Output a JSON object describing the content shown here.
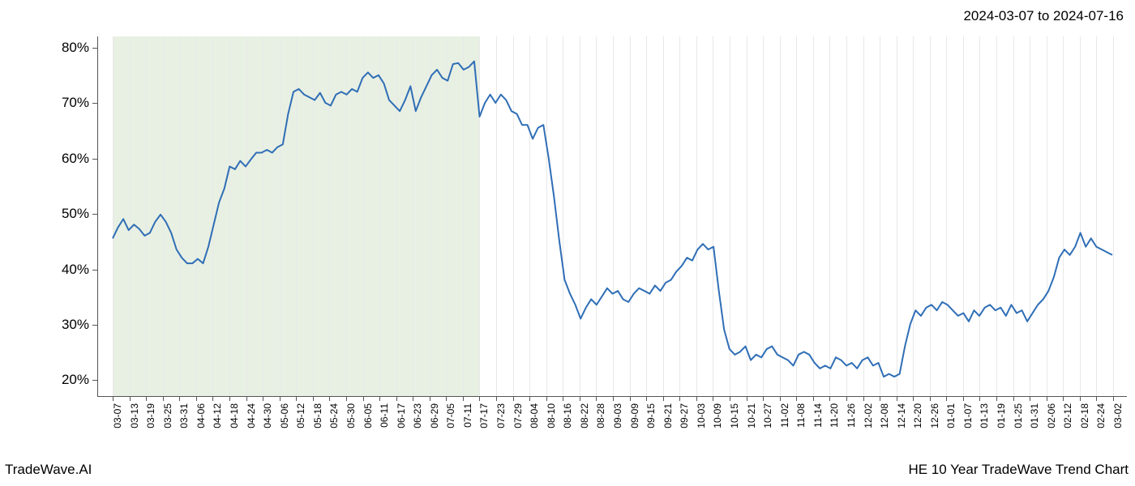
{
  "date_range_label": "2024-03-07 to 2024-07-16",
  "footer_left": "TradeWave.AI",
  "footer_right": "HE 10 Year TradeWave Trend Chart",
  "chart": {
    "type": "line",
    "line_color": "#2f6eb6",
    "line_width": 2,
    "background_color": "#ffffff",
    "grid_color": "#e8e8e8",
    "axis_color": "#555555",
    "highlight_band": {
      "color": "#dce8d4",
      "opacity": 0.65,
      "x_start_index": 0,
      "x_end_index": 22
    },
    "y_axis": {
      "min": 17,
      "max": 82,
      "ticks": [
        20,
        30,
        40,
        50,
        60,
        70,
        80
      ],
      "tick_labels": [
        "20%",
        "30%",
        "40%",
        "50%",
        "60%",
        "70%",
        "80%"
      ],
      "label_fontsize": 17
    },
    "x_axis": {
      "labels": [
        "03-07",
        "03-13",
        "03-19",
        "03-25",
        "03-31",
        "04-06",
        "04-12",
        "04-18",
        "04-24",
        "04-30",
        "05-06",
        "05-12",
        "05-18",
        "05-24",
        "05-30",
        "06-05",
        "06-11",
        "06-17",
        "06-23",
        "06-29",
        "07-05",
        "07-11",
        "07-17",
        "07-23",
        "07-29",
        "08-04",
        "08-10",
        "08-16",
        "08-22",
        "08-28",
        "09-03",
        "09-09",
        "09-15",
        "09-21",
        "09-27",
        "10-03",
        "10-09",
        "10-15",
        "10-21",
        "10-27",
        "11-02",
        "11-08",
        "11-14",
        "11-20",
        "11-26",
        "12-02",
        "12-08",
        "12-14",
        "12-20",
        "12-26",
        "01-01",
        "01-07",
        "01-13",
        "01-19",
        "01-25",
        "01-31",
        "02-06",
        "02-12",
        "02-18",
        "02-24",
        "03-02"
      ],
      "label_fontsize": 12
    },
    "series": {
      "values": [
        45.5,
        47.5,
        49.0,
        47.0,
        48.0,
        47.2,
        46.0,
        46.5,
        48.5,
        49.8,
        48.5,
        46.5,
        43.5,
        42.0,
        41.0,
        41.0,
        41.8,
        41.0,
        44.0,
        48.0,
        52.0,
        54.5,
        58.5,
        58.0,
        59.5,
        58.5,
        59.8,
        61.0,
        61.0,
        61.5,
        61.0,
        62.0,
        62.5,
        68.0,
        72.0,
        72.5,
        71.5,
        71.0,
        70.5,
        71.8,
        70.0,
        69.5,
        71.5,
        72.0,
        71.5,
        72.5,
        72.0,
        74.5,
        75.5,
        74.5,
        75.0,
        73.5,
        70.5,
        69.5,
        68.5,
        70.5,
        73.0,
        68.5,
        71.0,
        73.0,
        75.0,
        76.0,
        74.5,
        74.0,
        77.0,
        77.2,
        76.0,
        76.5,
        77.5,
        67.5,
        70.0,
        71.5,
        70.0,
        71.5,
        70.5,
        68.5,
        68.0,
        66.0,
        66.0,
        63.5,
        65.5,
        66.0,
        60.0,
        53.0,
        45.0,
        38.0,
        35.5,
        33.5,
        31.0,
        33.0,
        34.5,
        33.5,
        35.0,
        36.5,
        35.5,
        36.0,
        34.5,
        34.0,
        35.5,
        36.5,
        36.0,
        35.5,
        37.0,
        36.0,
        37.5,
        38.0,
        39.5,
        40.5,
        42.0,
        41.5,
        43.5,
        44.5,
        43.5,
        44.0,
        36.0,
        29.0,
        25.5,
        24.5,
        25.0,
        26.0,
        23.5,
        24.5,
        24.0,
        25.5,
        26.0,
        24.5,
        24.0,
        23.5,
        22.5,
        24.5,
        25.0,
        24.5,
        23.0,
        22.0,
        22.5,
        22.0,
        24.0,
        23.5,
        22.5,
        23.0,
        22.0,
        23.5,
        24.0,
        22.5,
        23.0,
        20.5,
        21.0,
        20.5,
        21.0,
        26.0,
        30.0,
        32.5,
        31.5,
        33.0,
        33.5,
        32.5,
        34.0,
        33.5,
        32.5,
        31.5,
        32.0,
        30.5,
        32.5,
        31.5,
        33.0,
        33.5,
        32.5,
        33.0,
        31.5,
        33.5,
        32.0,
        32.5,
        30.5,
        32.0,
        33.5,
        34.5,
        36.0,
        38.5,
        42.0,
        43.5,
        42.5,
        44.0,
        46.5,
        44.0,
        45.5,
        44.0,
        43.5,
        43.0,
        42.5
      ]
    }
  }
}
